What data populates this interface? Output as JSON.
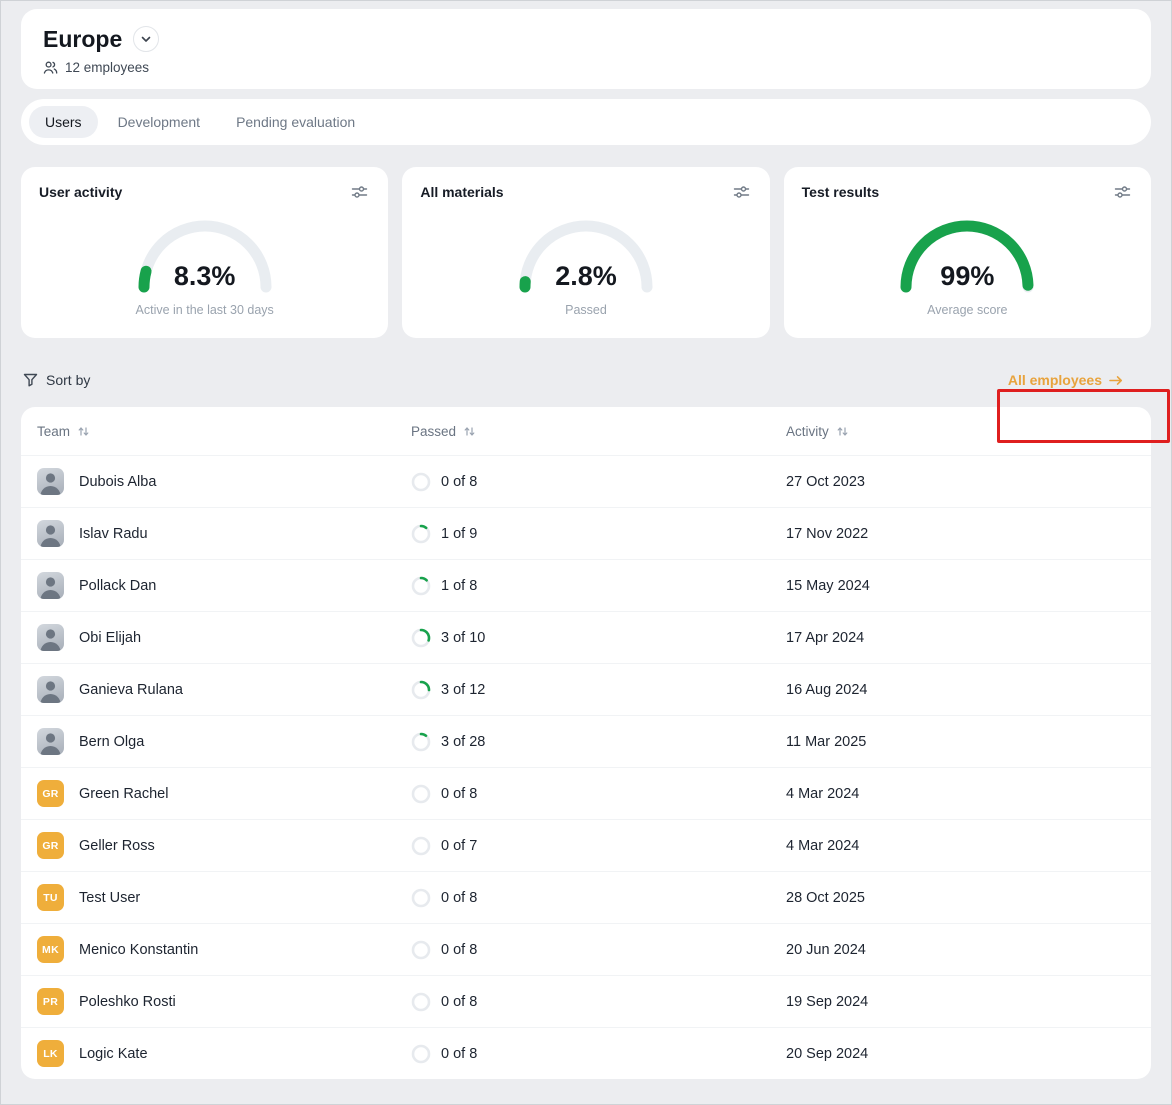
{
  "colors": {
    "accent_green": "#18a24c",
    "link_amber": "#e8a33d",
    "avatar_amber": "#efae3b",
    "annotation_red": "#df1f1f"
  },
  "header": {
    "title": "Europe",
    "employee_count": "12 employees"
  },
  "tabs": [
    {
      "label": "Users",
      "active": true
    },
    {
      "label": "Development",
      "active": false
    },
    {
      "label": "Pending evaluation",
      "active": false
    }
  ],
  "stats": [
    {
      "title": "User activity",
      "value": "8.3%",
      "percent": 8.3,
      "caption": "Active in the last 30 days"
    },
    {
      "title": "All materials",
      "value": "2.8%",
      "percent": 2.8,
      "caption": "Passed"
    },
    {
      "title": "Test results",
      "value": "99%",
      "percent": 99,
      "caption": "Average score"
    }
  ],
  "toolbar": {
    "sort_by_label": "Sort by",
    "all_employees_label": "All employees"
  },
  "table": {
    "columns": [
      "Team",
      "Passed",
      "Activity"
    ],
    "rows": [
      {
        "name": "Dubois Alba",
        "avatar": {
          "type": "photo"
        },
        "passed": "0 of 8",
        "progress": 0,
        "activity": "27 Oct 2023"
      },
      {
        "name": "Islav Radu",
        "avatar": {
          "type": "photo"
        },
        "passed": "1 of 9",
        "progress": 0.111,
        "activity": "17 Nov 2022"
      },
      {
        "name": "Pollack Dan",
        "avatar": {
          "type": "photo"
        },
        "passed": "1 of 8",
        "progress": 0.125,
        "activity": "15 May 2024"
      },
      {
        "name": "Obi Elijah",
        "avatar": {
          "type": "photo"
        },
        "passed": "3 of 10",
        "progress": 0.3,
        "activity": "17 Apr 2024"
      },
      {
        "name": "Ganieva Rulana",
        "avatar": {
          "type": "photo"
        },
        "passed": "3 of 12",
        "progress": 0.25,
        "activity": "16 Aug 2024"
      },
      {
        "name": "Bern Olga",
        "avatar": {
          "type": "photo"
        },
        "passed": "3 of 28",
        "progress": 0.107,
        "activity": "11 Mar 2025"
      },
      {
        "name": "Green Rachel",
        "avatar": {
          "type": "initials",
          "text": "GR"
        },
        "passed": "0 of 8",
        "progress": 0,
        "activity": "4 Mar 2024"
      },
      {
        "name": "Geller Ross",
        "avatar": {
          "type": "initials",
          "text": "GR"
        },
        "passed": "0 of 7",
        "progress": 0,
        "activity": "4 Mar 2024"
      },
      {
        "name": "Test User",
        "avatar": {
          "type": "initials",
          "text": "TU"
        },
        "passed": "0 of 8",
        "progress": 0,
        "activity": "28 Oct 2025"
      },
      {
        "name": "Menico Konstantin",
        "avatar": {
          "type": "initials",
          "text": "MK"
        },
        "passed": "0 of 8",
        "progress": 0,
        "activity": "20 Jun 2024"
      },
      {
        "name": "Poleshko Rosti",
        "avatar": {
          "type": "initials",
          "text": "PR"
        },
        "passed": "0 of 8",
        "progress": 0,
        "activity": "19 Sep 2024"
      },
      {
        "name": "Logic Kate",
        "avatar": {
          "type": "initials",
          "text": "LK"
        },
        "passed": "0 of 8",
        "progress": 0,
        "activity": "20 Sep 2024"
      }
    ]
  }
}
